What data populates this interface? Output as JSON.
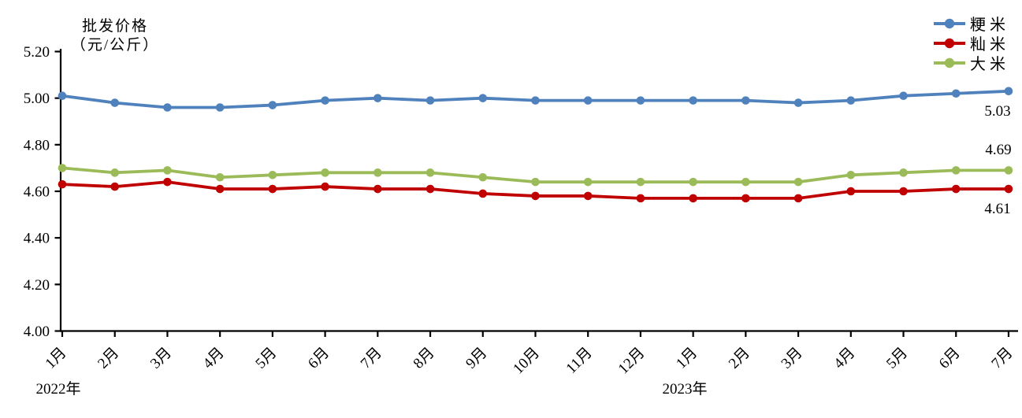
{
  "chart_data": {
    "type": "line",
    "title": "批发价格（元/公斤）",
    "title_lines": [
      "批发价格",
      "（元/公斤）"
    ],
    "ylabel": "批发价格（元/公斤）",
    "xlabel": "",
    "ylim": [
      4.0,
      5.2
    ],
    "ytick_labels": [
      "5.20",
      "5.00",
      "4.80",
      "4.60",
      "4.40",
      "4.20",
      "4.00"
    ],
    "grid": false,
    "legend_position": "top-right",
    "x": {
      "months": [
        "1月",
        "2月",
        "3月",
        "4月",
        "5月",
        "6月",
        "7月",
        "8月",
        "9月",
        "10月",
        "11月",
        "12月",
        "1月",
        "2月",
        "3月",
        "4月",
        "5月",
        "6月",
        "7月"
      ],
      "year_markers": [
        {
          "label": "2022年",
          "at_index": 0
        },
        {
          "label": "2023年",
          "at_index": 12
        }
      ]
    },
    "series": [
      {
        "name": "粳米",
        "color": "#4F81BD",
        "values": [
          5.01,
          4.98,
          4.96,
          4.96,
          4.97,
          4.99,
          5.0,
          4.99,
          5.0,
          4.99,
          4.99,
          4.99,
          4.99,
          4.99,
          4.98,
          4.99,
          5.01,
          5.02,
          5.03
        ],
        "end_label": "5.03"
      },
      {
        "name": "籼米",
        "color": "#C00000",
        "values": [
          4.63,
          4.62,
          4.64,
          4.61,
          4.61,
          4.62,
          4.61,
          4.61,
          4.59,
          4.58,
          4.58,
          4.57,
          4.57,
          4.57,
          4.57,
          4.6,
          4.6,
          4.61,
          4.61
        ],
        "end_label": "4.61"
      },
      {
        "name": "大米",
        "color": "#9BBB59",
        "values": [
          4.7,
          4.68,
          4.69,
          4.66,
          4.67,
          4.68,
          4.68,
          4.68,
          4.66,
          4.64,
          4.64,
          4.64,
          4.64,
          4.64,
          4.64,
          4.67,
          4.68,
          4.69,
          4.69
        ],
        "end_label": "4.69"
      }
    ],
    "axis_color": "#000000",
    "text_color": "#000000"
  }
}
